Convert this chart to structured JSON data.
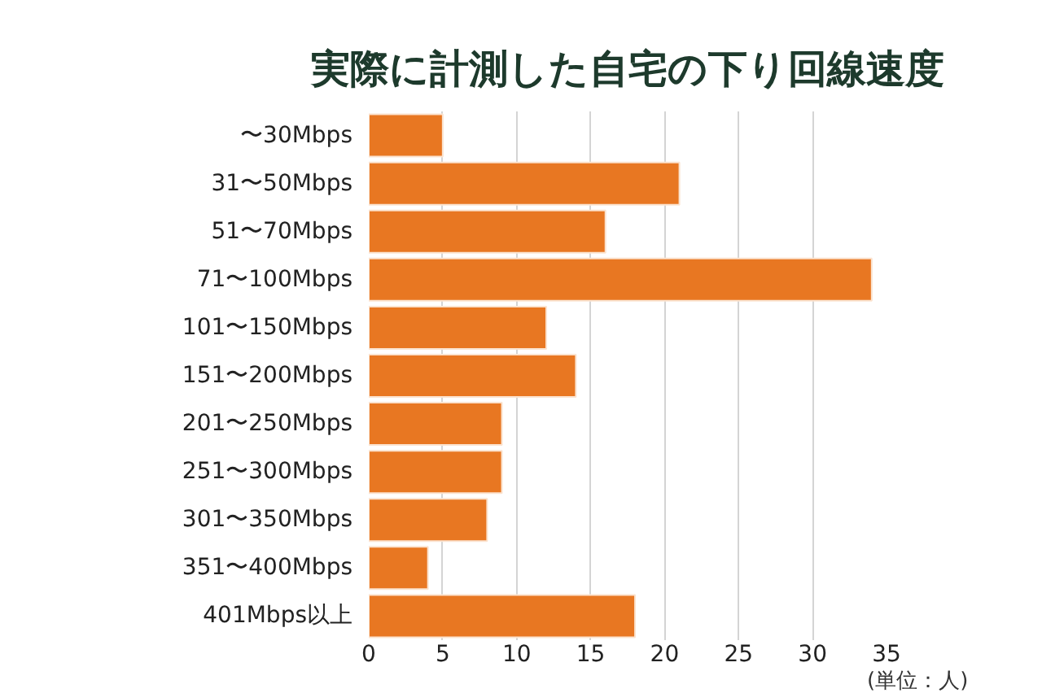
{
  "chart_data": {
    "type": "bar",
    "orientation": "horizontal",
    "title": "実際に計測した自宅の下り回線速度",
    "categories": [
      "〜30Mbps",
      "31〜50Mbps",
      "51〜70Mbps",
      "71〜100Mbps",
      "101〜150Mbps",
      "151〜200Mbps",
      "201〜250Mbps",
      "251〜300Mbps",
      "301〜350Mbps",
      "351〜400Mbps",
      "401Mbps以上"
    ],
    "values": [
      5,
      21,
      16,
      34,
      12,
      14,
      9,
      9,
      8,
      4,
      18
    ],
    "color": "#e87722",
    "xlim": [
      0,
      35
    ],
    "xticks": [
      0,
      5,
      10,
      15,
      20,
      25,
      30,
      35
    ],
    "grid": "x",
    "annotations": [
      "(単位：人)"
    ]
  }
}
